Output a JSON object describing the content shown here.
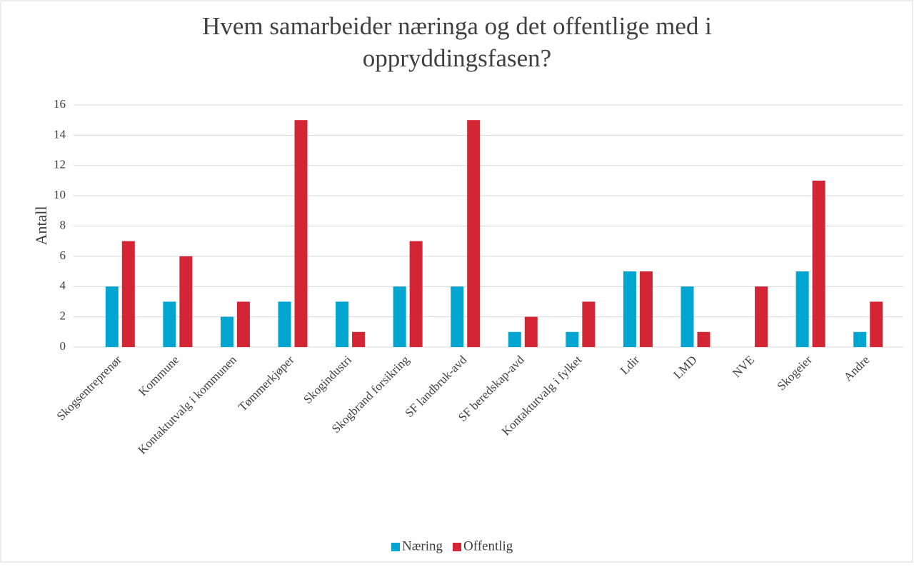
{
  "chart_data": {
    "type": "bar",
    "title": "Hvem samarbeider næringa og det offentlige med i oppryddingsfasen?",
    "y_label": "Antall",
    "categories": [
      "Skogsentreprenør",
      "Kommune",
      "Kontaktutvalg i kommunen",
      "Tømmerkjøper",
      "Skogindustri",
      "Skogbrand forsikring",
      "SF landbruk-avd",
      "SF beredskap-avd",
      "Kontaktutvalg i fylket",
      "Ldir",
      "LMD",
      "NVE",
      "Skogeier",
      "Andre"
    ],
    "series": [
      {
        "name": "Næring",
        "color": "#00a6cf",
        "values": [
          4,
          3,
          2,
          3,
          3,
          4,
          4,
          1,
          1,
          5,
          4,
          0,
          5,
          1
        ]
      },
      {
        "name": "Offentlig",
        "color": "#d42534",
        "values": [
          7,
          6,
          3,
          15,
          1,
          7,
          15,
          2,
          3,
          5,
          1,
          4,
          11,
          3
        ]
      }
    ],
    "ylim": [
      0,
      16
    ],
    "yticks": [
      0,
      2,
      4,
      6,
      8,
      10,
      12,
      14,
      16
    ],
    "grid": true,
    "legend": "bottom"
  }
}
